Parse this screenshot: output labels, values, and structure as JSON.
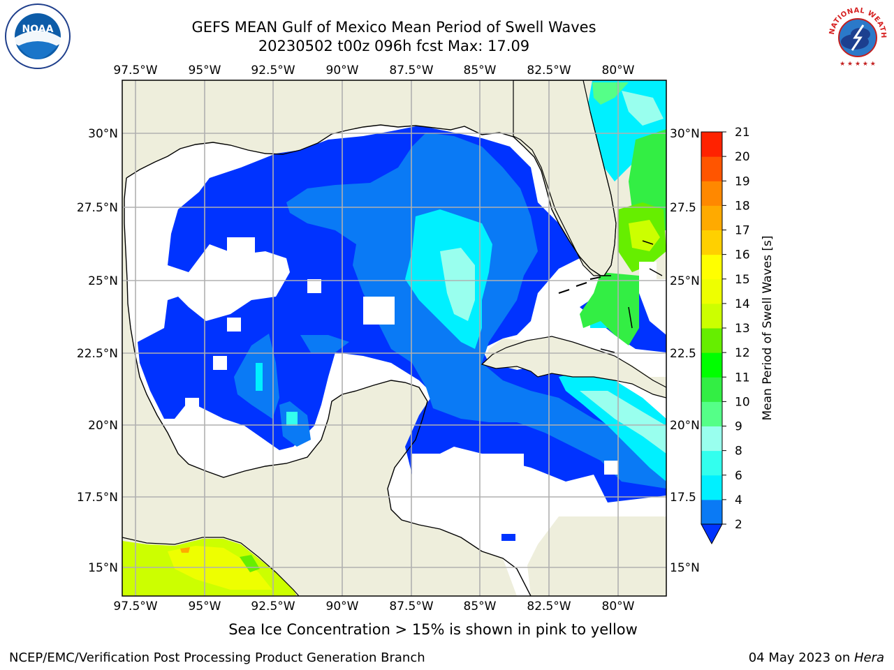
{
  "title_line1": "GEFS MEAN Gulf of Mexico Mean Period of Swell Waves",
  "title_line2": "20230502 t00z 096h fcst   Max: 17.09",
  "footnote": "Sea Ice Concentration > 15% is shown in pink to yellow",
  "credit": "NCEP/EMC/Verification Post Processing Product Generation Branch",
  "date_text": "04 May 2023 on ",
  "machine": "Hera",
  "logos": {
    "left": "noaa-logo",
    "right": "nws-logo",
    "noaa_text": "NOAA",
    "nws_text": "NATIONAL WEATHER SERVICE"
  },
  "map": {
    "lon_ticks": [
      "97.5°W",
      "95°W",
      "92.5°W",
      "90°W",
      "87.5°W",
      "85°W",
      "82.5°W",
      "80°W"
    ],
    "lat_ticks_left": [
      "30°N",
      "27.5°N",
      "25°N",
      "22.5°N",
      "20°N",
      "17.5°N",
      "15°N"
    ],
    "lat_ticks_right": [
      "30°N",
      "27.5",
      "25°N",
      "22.5",
      "20°N",
      "17.5",
      "15°N"
    ],
    "lon_range": [
      -98.1,
      -78.4
    ],
    "lat_range": [
      14.0,
      31.8
    ],
    "land_color": "#eeeedc",
    "grid": true
  },
  "colorbar": {
    "label": "Mean Period of Swell Waves [s]",
    "ticks": [
      "2",
      "4",
      "6",
      "8",
      "9",
      "10",
      "11",
      "12",
      "13",
      "14",
      "15",
      "16",
      "17",
      "18",
      "19",
      "20",
      "21"
    ],
    "colors": [
      "#0033ff",
      "#0a7af5",
      "#00f0ff",
      "#33ffee",
      "#99ffee",
      "#55ff88",
      "#33ee44",
      "#00ff00",
      "#66ee00",
      "#ccff00",
      "#eeff00",
      "#ffff00",
      "#ffd000",
      "#ffaa00",
      "#ff8800",
      "#ff5500",
      "#ff2200",
      "#ff0000"
    ],
    "extend": "min"
  },
  "chart_data": {
    "type": "heatmap",
    "title": "GEFS MEAN Gulf of Mexico Mean Period of Swell Waves",
    "subtitle": "20230502 t00z 096h fcst   Max: 17.09",
    "xlabel": "",
    "ylabel": "",
    "colorbar_label": "Mean Period of Swell Waves [s]",
    "x_range": [
      -98.1,
      -78.4
    ],
    "y_range": [
      14.0,
      31.8
    ],
    "color_levels": [
      2,
      4,
      6,
      8,
      9,
      10,
      11,
      12,
      13,
      14,
      15,
      16,
      17,
      18,
      19,
      20,
      21
    ],
    "max": 17.09
  }
}
